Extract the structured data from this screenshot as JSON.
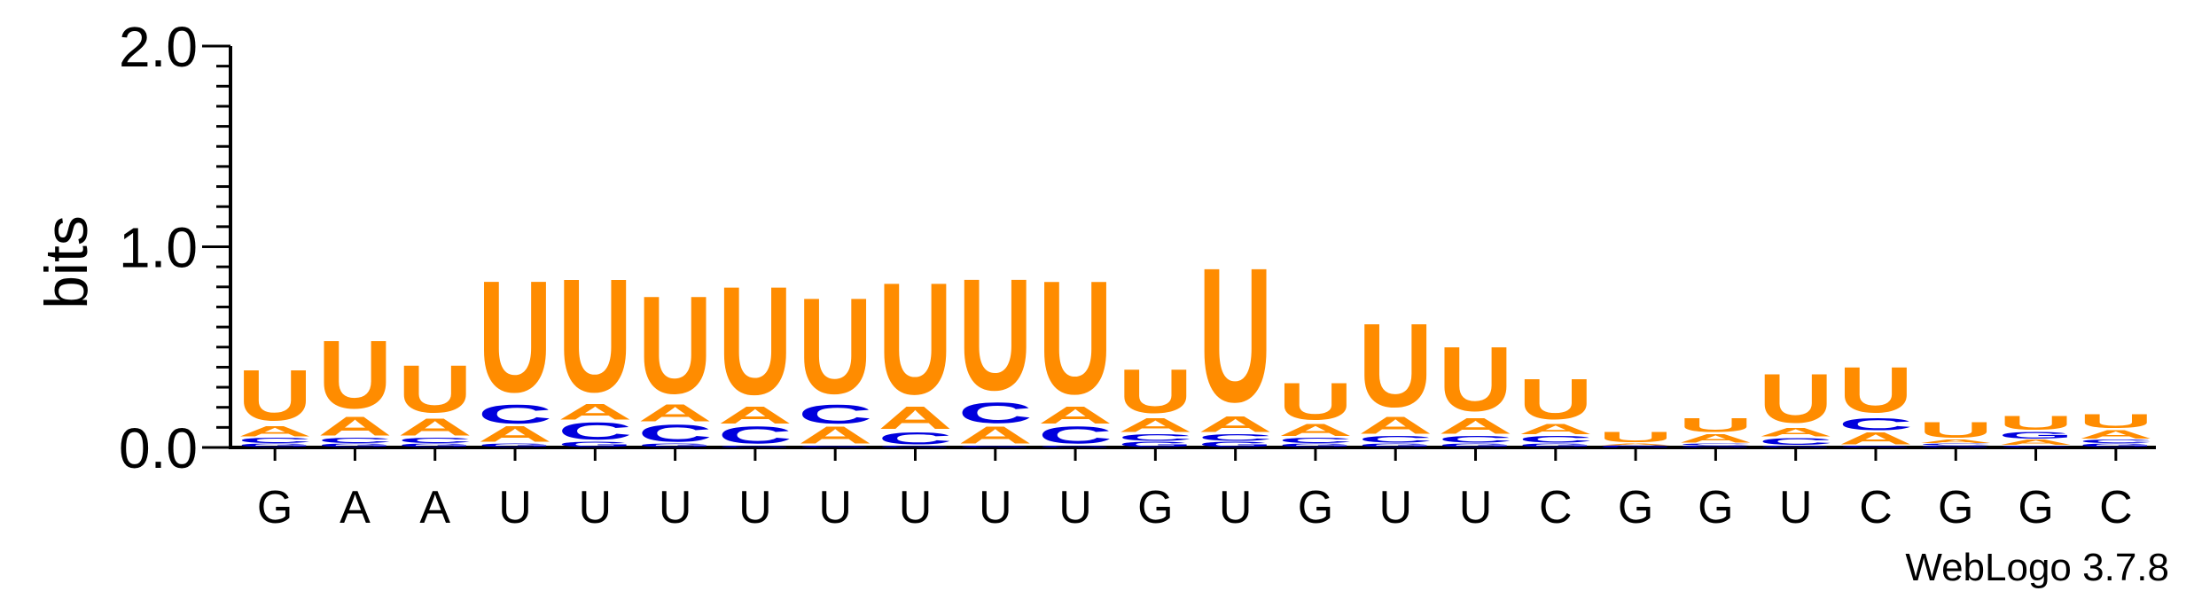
{
  "chart_data": {
    "type": "sequence-logo",
    "ylabel": "bits",
    "ylim": [
      0,
      2.0
    ],
    "yticks": [
      {
        "value": 0.0,
        "label": "0.0"
      },
      {
        "value": 1.0,
        "label": "1.0"
      },
      {
        "value": 2.0,
        "label": "2.0"
      }
    ],
    "consensus": [
      "G",
      "A",
      "A",
      "U",
      "U",
      "U",
      "U",
      "U",
      "U",
      "U",
      "U",
      "G",
      "U",
      "G",
      "U",
      "U",
      "C",
      "G",
      "G",
      "U",
      "C",
      "G",
      "G",
      "C"
    ],
    "colors": {
      "U": "#ff8c00",
      "A": "#ff8c00",
      "C": "#0000dd",
      "G": "#0000dd"
    },
    "stacks": [
      [
        {
          "base": "G",
          "bits": 0.02
        },
        {
          "base": "C",
          "bits": 0.03
        },
        {
          "base": "A",
          "bits": 0.06
        },
        {
          "base": "U",
          "bits": 0.29
        }
      ],
      [
        {
          "base": "G",
          "bits": 0.02
        },
        {
          "base": "C",
          "bits": 0.03
        },
        {
          "base": "A",
          "bits": 0.11
        },
        {
          "base": "U",
          "bits": 0.39
        }
      ],
      [
        {
          "base": "G",
          "bits": 0.02
        },
        {
          "base": "C",
          "bits": 0.03
        },
        {
          "base": "A",
          "bits": 0.1
        },
        {
          "base": "U",
          "bits": 0.27
        }
      ],
      [
        {
          "base": "G",
          "bits": 0.02
        },
        {
          "base": "A",
          "bits": 0.09
        },
        {
          "base": "C",
          "bits": 0.11
        },
        {
          "base": "U",
          "bits": 0.64
        }
      ],
      [
        {
          "base": "G",
          "bits": 0.03
        },
        {
          "base": "C",
          "bits": 0.1
        },
        {
          "base": "A",
          "bits": 0.09
        },
        {
          "base": "U",
          "bits": 0.65
        }
      ],
      [
        {
          "base": "G",
          "bits": 0.02
        },
        {
          "base": "C",
          "bits": 0.1
        },
        {
          "base": "A",
          "bits": 0.1
        },
        {
          "base": "U",
          "bits": 0.56
        }
      ],
      [
        {
          "base": "G",
          "bits": 0.01
        },
        {
          "base": "C",
          "bits": 0.1
        },
        {
          "base": "A",
          "bits": 0.1
        },
        {
          "base": "U",
          "bits": 0.62
        }
      ],
      [
        {
          "base": "G",
          "bits": 0.01
        },
        {
          "base": "A",
          "bits": 0.1
        },
        {
          "base": "C",
          "bits": 0.11
        },
        {
          "base": "U",
          "bits": 0.55
        }
      ],
      [
        {
          "base": "G",
          "bits": 0.01
        },
        {
          "base": "C",
          "bits": 0.07
        },
        {
          "base": "A",
          "bits": 0.13
        },
        {
          "base": "U",
          "bits": 0.64
        }
      ],
      [
        {
          "base": "G",
          "bits": 0.01
        },
        {
          "base": "A",
          "bits": 0.1
        },
        {
          "base": "C",
          "bits": 0.12
        },
        {
          "base": "U",
          "bits": 0.64
        }
      ],
      [
        {
          "base": "G",
          "bits": 0.01
        },
        {
          "base": "C",
          "bits": 0.1
        },
        {
          "base": "A",
          "bits": 0.1
        },
        {
          "base": "U",
          "bits": 0.65
        }
      ],
      [
        {
          "base": "G",
          "bits": 0.03
        },
        {
          "base": "C",
          "bits": 0.04
        },
        {
          "base": "A",
          "bits": 0.08
        },
        {
          "base": "U",
          "bits": 0.25
        }
      ],
      [
        {
          "base": "G",
          "bits": 0.03
        },
        {
          "base": "C",
          "bits": 0.04
        },
        {
          "base": "A",
          "bits": 0.09
        },
        {
          "base": "U",
          "bits": 0.77
        }
      ],
      [
        {
          "base": "G",
          "bits": 0.02
        },
        {
          "base": "C",
          "bits": 0.03
        },
        {
          "base": "A",
          "bits": 0.07
        },
        {
          "base": "U",
          "bits": 0.21
        }
      ],
      [
        {
          "base": "G",
          "bits": 0.02
        },
        {
          "base": "C",
          "bits": 0.04
        },
        {
          "base": "A",
          "bits": 0.1
        },
        {
          "base": "U",
          "bits": 0.48
        }
      ],
      [
        {
          "base": "G",
          "bits": 0.02
        },
        {
          "base": "C",
          "bits": 0.04
        },
        {
          "base": "A",
          "bits": 0.09
        },
        {
          "base": "U",
          "bits": 0.37
        }
      ],
      [
        {
          "base": "G",
          "bits": 0.02
        },
        {
          "base": "C",
          "bits": 0.04
        },
        {
          "base": "A",
          "bits": 0.06
        },
        {
          "base": "U",
          "bits": 0.23
        }
      ],
      [
        {
          "base": "G",
          "bits": 0.005
        },
        {
          "base": "C",
          "bits": 0.005
        },
        {
          "base": "A",
          "bits": 0.01
        },
        {
          "base": "U",
          "bits": 0.06
        }
      ],
      [
        {
          "base": "G",
          "bits": 0.01
        },
        {
          "base": "C",
          "bits": 0.01
        },
        {
          "base": "A",
          "bits": 0.05
        },
        {
          "base": "U",
          "bits": 0.08
        }
      ],
      [
        {
          "base": "G",
          "bits": 0.01
        },
        {
          "base": "C",
          "bits": 0.04
        },
        {
          "base": "A",
          "bits": 0.05
        },
        {
          "base": "U",
          "bits": 0.28
        }
      ],
      [
        {
          "base": "G",
          "bits": 0.01
        },
        {
          "base": "A",
          "bits": 0.07
        },
        {
          "base": "C",
          "bits": 0.07
        },
        {
          "base": "U",
          "bits": 0.26
        }
      ],
      [
        {
          "base": "G",
          "bits": 0.01
        },
        {
          "base": "C",
          "bits": 0.01
        },
        {
          "base": "A",
          "bits": 0.02
        },
        {
          "base": "U",
          "bits": 0.09
        }
      ],
      [
        {
          "base": "C",
          "bits": 0.01
        },
        {
          "base": "A",
          "bits": 0.03
        },
        {
          "base": "G",
          "bits": 0.04
        },
        {
          "base": "U",
          "bits": 0.08
        }
      ],
      [
        {
          "base": "G",
          "bits": 0.02
        },
        {
          "base": "C",
          "bits": 0.02
        },
        {
          "base": "A",
          "bits": 0.05
        },
        {
          "base": "U",
          "bits": 0.08
        }
      ]
    ]
  },
  "footer": {
    "credit": "WebLogo 3.7.8"
  }
}
